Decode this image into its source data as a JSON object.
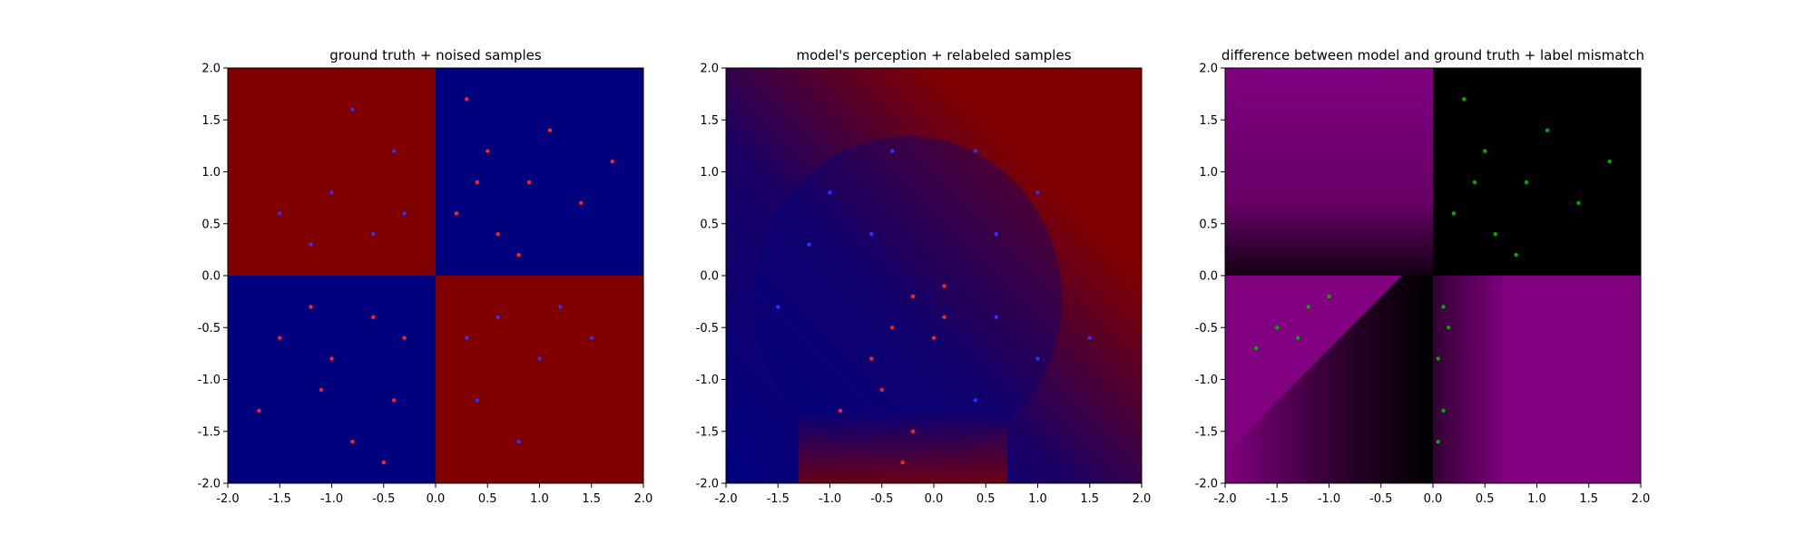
{
  "chart_data": [
    {
      "type": "scatter",
      "title": "ground truth + noised samples",
      "xlim": [
        -2.0,
        2.0
      ],
      "ylim": [
        -2.0,
        2.0
      ],
      "xticks": [
        "-2.0",
        "-1.5",
        "-1.0",
        "-0.5",
        "0.0",
        "0.5",
        "1.0",
        "1.5",
        "2.0"
      ],
      "yticks": [
        "-2.0",
        "-1.5",
        "-1.0",
        "-0.5",
        "0.0",
        "0.5",
        "1.0",
        "1.5",
        "2.0"
      ],
      "background": "XOR quadrant map: red (#800000) where x*y<0, blue (#00007f) where x*y>0",
      "colors": {
        "red": "#800000",
        "blue": "#00007f",
        "red_points": "#ff2020",
        "blue_points": "#3030ff"
      },
      "series": [
        {
          "marker_color": "#ff2020",
          "points": [
            [
              0.2,
              0.6
            ],
            [
              0.4,
              0.9
            ],
            [
              0.9,
              0.9
            ],
            [
              0.6,
              0.4
            ],
            [
              1.1,
              1.4
            ],
            [
              0.3,
              1.7
            ],
            [
              1.4,
              0.7
            ],
            [
              0.8,
              0.2
            ],
            [
              1.7,
              1.1
            ],
            [
              0.5,
              1.2
            ],
            [
              -0.6,
              -0.4
            ],
            [
              -1.0,
              -0.8
            ],
            [
              -0.4,
              -1.2
            ],
            [
              -1.5,
              -0.6
            ],
            [
              -0.8,
              -1.6
            ],
            [
              -1.2,
              -0.3
            ],
            [
              -0.3,
              -0.6
            ],
            [
              -1.7,
              -1.3
            ],
            [
              -0.5,
              -1.8
            ],
            [
              -1.1,
              -1.1
            ]
          ]
        },
        {
          "marker_color": "#3030ff",
          "points": [
            [
              -0.6,
              0.4
            ],
            [
              -1.0,
              0.8
            ],
            [
              -0.4,
              1.2
            ],
            [
              -1.5,
              0.6
            ],
            [
              -0.8,
              1.6
            ],
            [
              -1.2,
              0.3
            ],
            [
              0.6,
              -0.4
            ],
            [
              1.0,
              -0.8
            ],
            [
              0.4,
              -1.2
            ],
            [
              1.5,
              -0.6
            ],
            [
              0.8,
              -1.6
            ],
            [
              1.2,
              -0.3
            ],
            [
              -0.3,
              0.6
            ],
            [
              0.3,
              -0.6
            ]
          ]
        }
      ]
    },
    {
      "type": "scatter",
      "title": "model's perception + relabeled samples",
      "xlim": [
        -2.0,
        2.0
      ],
      "ylim": [
        -2.0,
        2.0
      ],
      "xticks": [
        "-2.0",
        "-1.5",
        "-1.0",
        "-0.5",
        "0.0",
        "0.5",
        "1.0",
        "1.5",
        "2.0"
      ],
      "yticks": [
        "-2.0",
        "-1.5",
        "-1.0",
        "-0.5",
        "0.0",
        "0.5",
        "1.0",
        "1.5",
        "2.0"
      ],
      "background": "mostly red (#800000) with a blue (#00007f) region toward the lower-left and center",
      "colors": {
        "red": "#800000",
        "blue": "#00007f",
        "red_points": "#ff2020",
        "blue_points": "#3030ff"
      },
      "series": [
        {
          "marker_color": "#ff2020",
          "points": [
            [
              -0.2,
              -0.2
            ],
            [
              0.1,
              -0.1
            ],
            [
              -0.4,
              -0.5
            ],
            [
              0.0,
              -0.6
            ],
            [
              -0.5,
              -1.1
            ],
            [
              -0.9,
              -1.3
            ],
            [
              -0.2,
              -1.5
            ],
            [
              0.1,
              -0.4
            ],
            [
              -0.6,
              -0.8
            ],
            [
              -0.3,
              -1.8
            ]
          ]
        },
        {
          "marker_color": "#3030ff",
          "points": [
            [
              -0.6,
              0.4
            ],
            [
              -1.0,
              0.8
            ],
            [
              -0.4,
              1.2
            ],
            [
              0.6,
              0.4
            ],
            [
              1.0,
              0.8
            ],
            [
              0.4,
              1.2
            ],
            [
              -1.5,
              -0.3
            ],
            [
              0.6,
              -0.4
            ],
            [
              1.0,
              -0.8
            ],
            [
              0.4,
              -1.2
            ],
            [
              -1.2,
              0.3
            ],
            [
              1.5,
              -0.6
            ]
          ]
        }
      ]
    },
    {
      "type": "scatter",
      "title": "difference between model and ground truth + label mismatch",
      "xlim": [
        -2.0,
        2.0
      ],
      "ylim": [
        -2.0,
        2.0
      ],
      "xticks": [
        "-2.0",
        "-1.5",
        "-1.0",
        "-0.5",
        "0.0",
        "0.5",
        "1.0",
        "1.5",
        "2.0"
      ],
      "yticks": [
        "-2.0",
        "-1.5",
        "-1.0",
        "-0.5",
        "0.0",
        "0.5",
        "1.0",
        "1.5",
        "2.0"
      ],
      "background": "purple (#800080) where model and truth disagree, black where they agree",
      "colors": {
        "purple": "#800080",
        "black": "#000000",
        "points": "#00aa00"
      },
      "series": [
        {
          "marker_color": "#00aa00",
          "points": [
            [
              0.2,
              0.6
            ],
            [
              0.4,
              0.9
            ],
            [
              0.9,
              0.9
            ],
            [
              0.6,
              0.4
            ],
            [
              1.1,
              1.4
            ],
            [
              0.3,
              1.7
            ],
            [
              1.4,
              0.7
            ],
            [
              0.8,
              0.2
            ],
            [
              1.7,
              1.1
            ],
            [
              0.5,
              1.2
            ],
            [
              -1.5,
              -0.5
            ],
            [
              -1.2,
              -0.3
            ],
            [
              -1.7,
              -0.7
            ],
            [
              -1.0,
              -0.2
            ],
            [
              0.1,
              -0.3
            ],
            [
              0.05,
              -0.8
            ],
            [
              0.1,
              -1.3
            ],
            [
              0.15,
              -0.5
            ],
            [
              0.05,
              -1.6
            ],
            [
              -1.3,
              -0.6
            ]
          ]
        }
      ]
    }
  ]
}
